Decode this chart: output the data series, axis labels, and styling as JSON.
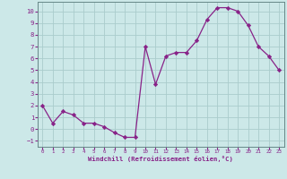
{
  "x": [
    0,
    1,
    2,
    3,
    4,
    5,
    6,
    7,
    8,
    9,
    10,
    11,
    12,
    13,
    14,
    15,
    16,
    17,
    18,
    19,
    20,
    21,
    22,
    23
  ],
  "y": [
    2.0,
    0.5,
    1.5,
    1.2,
    0.5,
    0.5,
    0.2,
    -0.3,
    -0.7,
    -0.7,
    7.0,
    3.8,
    6.2,
    6.5,
    6.5,
    7.5,
    9.3,
    10.3,
    10.3,
    10.0,
    8.8,
    7.0,
    6.2,
    5.0
  ],
  "xlabel": "Windchill (Refroidissement éolien,°C)",
  "xlim": [
    -0.5,
    23.5
  ],
  "ylim": [
    -1.5,
    10.8
  ],
  "bg_color": "#cce8e8",
  "grid_color": "#aacccc",
  "line_color": "#882288",
  "yticks": [
    -1,
    0,
    1,
    2,
    3,
    4,
    5,
    6,
    7,
    8,
    9,
    10
  ],
  "xticks": [
    0,
    1,
    2,
    3,
    4,
    5,
    6,
    7,
    8,
    9,
    10,
    11,
    12,
    13,
    14,
    15,
    16,
    17,
    18,
    19,
    20,
    21,
    22,
    23
  ]
}
